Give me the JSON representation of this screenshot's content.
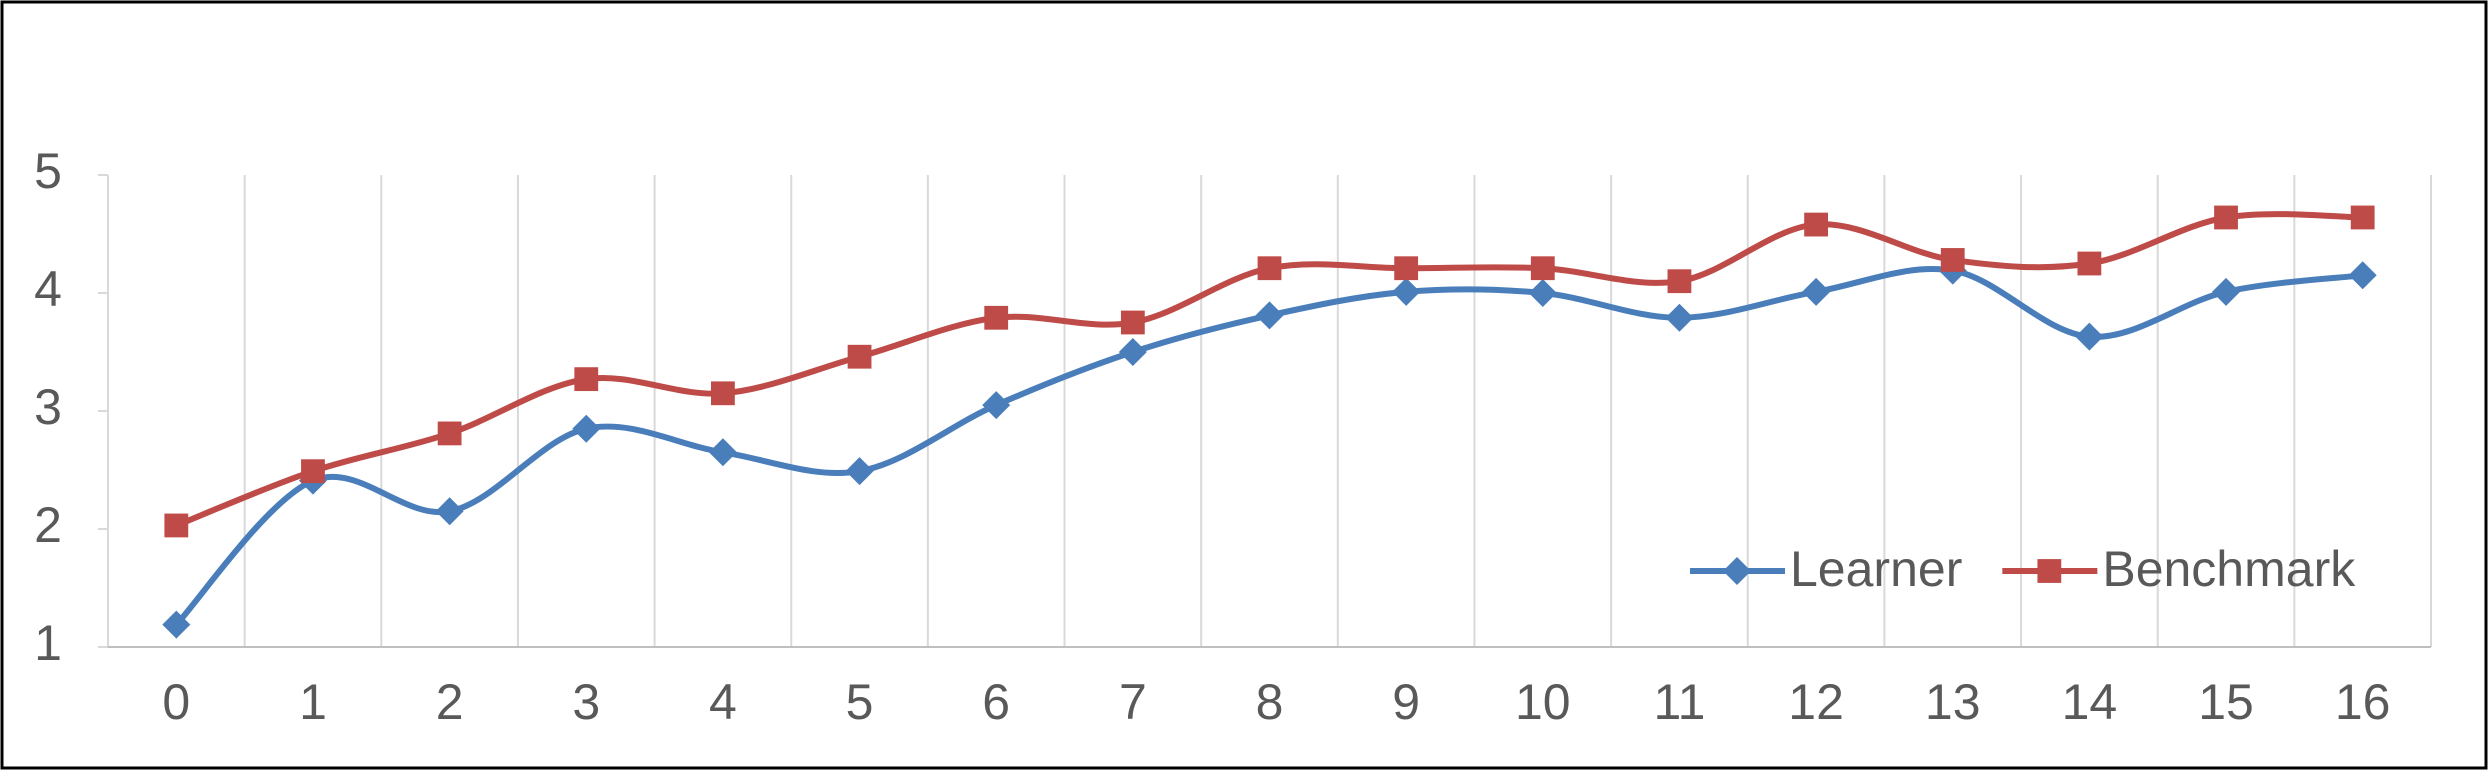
{
  "chart_data": {
    "type": "line",
    "categories": [
      "0",
      "1",
      "2",
      "3",
      "4",
      "5",
      "6",
      "7",
      "8",
      "9",
      "10",
      "11",
      "12",
      "13",
      "14",
      "15",
      "16"
    ],
    "series": [
      {
        "name": "Learner",
        "color": "#4a7ebb",
        "marker": "diamond",
        "values": [
          1.19,
          2.41,
          2.15,
          2.85,
          2.65,
          2.49,
          3.05,
          3.5,
          3.81,
          4.01,
          4.0,
          3.79,
          4.01,
          4.19,
          3.63,
          4.01,
          4.15
        ]
      },
      {
        "name": "Benchmark",
        "color": "#be4b48",
        "marker": "square",
        "values": [
          2.03,
          2.49,
          2.81,
          3.27,
          3.15,
          3.46,
          3.79,
          3.75,
          4.21,
          4.21,
          4.21,
          4.1,
          4.58,
          4.28,
          4.25,
          4.64,
          4.64
        ]
      }
    ],
    "ylim": [
      1,
      5
    ],
    "yticks": [
      1,
      2,
      3,
      4,
      5
    ],
    "smooth": true,
    "grid": "vertical",
    "legend": "lower right"
  }
}
